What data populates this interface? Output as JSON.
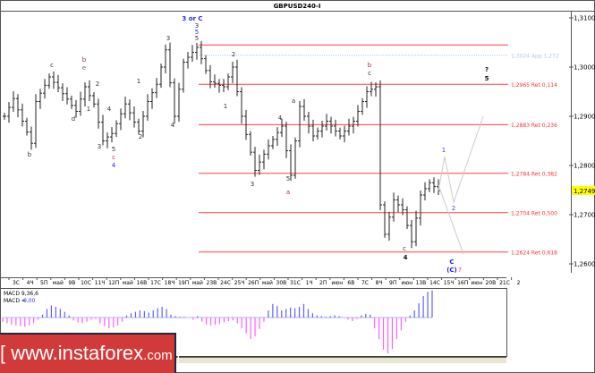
{
  "chart_data": {
    "type": "ohlc",
    "title": "GBPUSD240-I",
    "y_ticks": [
      "1,3100",
      "1,3000",
      "1,2900",
      "1,2800",
      "1,2700",
      "1,2600"
    ],
    "y_tick_values": [
      1.31,
      1.3,
      1.29,
      1.28,
      1.27,
      1.26
    ],
    "ylim": [
      1.2584,
      1.3136
    ],
    "x_ticks": [
      "3С",
      "4Ч",
      "5П",
      "май",
      "9В",
      "10С",
      "11Ч",
      "12П",
      "май",
      "16В",
      "17С",
      "18Ч",
      "19П",
      "май",
      "23В",
      "24С",
      "25Ч",
      "26П",
      "май",
      "30В",
      "31С",
      "1Ч",
      "2П",
      "июн",
      "6В",
      "7С",
      "8Ч",
      "9П",
      "июн",
      "13В",
      "14С",
      "15Ч",
      "16П",
      "июн",
      "20В",
      "21С",
      "2"
    ],
    "closes": [
      1.29,
      1.2918,
      1.2936,
      1.2913,
      1.289,
      1.2868,
      1.2845,
      1.293,
      1.2947,
      1.2963,
      1.298,
      1.2969,
      1.2958,
      1.2946,
      1.2935,
      1.2922,
      1.291,
      1.2935,
      1.296,
      1.2942,
      1.2925,
      1.2888,
      1.285,
      1.2858,
      1.2865,
      1.2885,
      1.2905,
      1.2925,
      1.2907,
      1.2888,
      1.287,
      1.29,
      1.293,
      1.2948,
      1.2965,
      1.3,
      1.3035,
      1.2968,
      1.29,
      1.2955,
      1.301,
      1.302,
      1.303,
      1.304,
      1.3017,
      1.2993,
      1.297,
      1.2967,
      1.2963,
      1.296,
      1.298,
      1.3,
      1.295,
      1.29,
      1.2863,
      1.2827,
      1.279,
      1.2807,
      1.2823,
      1.284,
      1.2853,
      1.2867,
      1.288,
      1.283,
      1.278,
      1.285,
      1.292,
      1.29,
      1.288,
      1.286,
      1.287,
      1.288,
      1.289,
      1.288,
      1.287,
      1.286,
      1.287,
      1.288,
      1.289,
      1.291,
      1.293,
      1.295,
      1.2955,
      1.296,
      1.272,
      1.266,
      1.2695,
      1.273,
      1.272,
      1.271,
      1.2678,
      1.2645,
      1.2693,
      1.274,
      1.2753,
      1.2765,
      1.2757,
      1.2749
    ],
    "current_price": "1,2749",
    "current_price_value": 1.2749,
    "levels": [
      {
        "value": 1.3045,
        "label": "",
        "color": "#ff4040"
      },
      {
        "value": 1.3024,
        "label": "1,3024 App 1,272",
        "color": "#a8cce8"
      },
      {
        "value": 1.2965,
        "label": "1,2965 Ret 0,114",
        "color": "#ff4040"
      },
      {
        "value": 1.2883,
        "label": "1,2883 Ret 0,236",
        "color": "#ff4040"
      },
      {
        "value": 1.2784,
        "label": "1,2784 Ret 0,382",
        "color": "#ff4040"
      },
      {
        "value": 1.2704,
        "label": "1,2704 Ret 0,500",
        "color": "#ff4040"
      },
      {
        "value": 1.2624,
        "label": "1,2624 Ret 0,618",
        "color": "#ff4040"
      }
    ],
    "projection_main": [
      1.2749,
      1.2818,
      1.2725,
      1.29
    ],
    "projection_alt": [
      1.276,
      1.262
    ],
    "wave_labels": [
      {
        "text": "3 or C",
        "color": "#2828ff"
      },
      {
        "text": "3",
        "color": "#333"
      },
      {
        "text": "5",
        "color": "#2828ff"
      },
      {
        "text": "5",
        "color": "#333"
      },
      {
        "text": "b",
        "color": "#333"
      },
      {
        "text": "c",
        "color": "#333"
      },
      {
        "text": "b",
        "color": "#a03030"
      },
      {
        "text": "e",
        "color": "#666"
      },
      {
        "text": "d",
        "color": "#333"
      },
      {
        "text": "2",
        "color": "#333"
      },
      {
        "text": "1",
        "color": "#333"
      },
      {
        "text": "4",
        "color": "#333"
      },
      {
        "text": "3",
        "color": "#333"
      },
      {
        "text": "5",
        "color": "#333"
      },
      {
        "text": "c",
        "color": "#c03030"
      },
      {
        "text": "4",
        "color": "#2828ff"
      },
      {
        "text": "1",
        "color": "#333"
      },
      {
        "text": "2",
        "color": "#333"
      },
      {
        "text": "3",
        "color": "#333"
      },
      {
        "text": "4",
        "color": "#333"
      },
      {
        "text": "2",
        "color": "#333"
      },
      {
        "text": "1",
        "color": "#333"
      },
      {
        "text": "3",
        "color": "#333"
      },
      {
        "text": "4",
        "color": "#333"
      },
      {
        "text": "5",
        "color": "#333"
      },
      {
        "text": "a",
        "color": "#c03030"
      },
      {
        "text": "a",
        "color": "#333"
      },
      {
        "text": "b",
        "color": "#a03030"
      },
      {
        "text": "c",
        "color": "#333"
      },
      {
        "text": "c",
        "color": "#333"
      },
      {
        "text": "4",
        "color": "#111"
      },
      {
        "text": "?",
        "color": "#111"
      },
      {
        "text": "5",
        "color": "#111"
      },
      {
        "text": "1",
        "color": "#4040ff"
      },
      {
        "text": "2",
        "color": "#4040ff"
      },
      {
        "text": "C",
        "color": "#2020e0"
      },
      {
        "text": "(C)",
        "color": "#2020e0"
      },
      {
        "text": "?",
        "color": "#ff2020"
      }
    ],
    "macd": {
      "label": "MACD 9,36,6",
      "value_label": "MACD =",
      "value": "0,00",
      "pos_color": "#6060ff",
      "neg_color": "#ff60ff",
      "histogram": [
        -6,
        -8,
        -10,
        -11,
        -12,
        -13,
        -11,
        -8,
        -3,
        4,
        12,
        17,
        15,
        12,
        8,
        3,
        -4,
        -7,
        -8,
        -6,
        -3,
        -2,
        -8,
        -12,
        -15,
        -14,
        -11,
        -6,
        3,
        6,
        8,
        10,
        9,
        7,
        10,
        13,
        15,
        12,
        4,
        2,
        1,
        1,
        0,
        -3,
        2,
        -6,
        -10,
        -11,
        -10,
        -9,
        -7,
        -5,
        -4,
        -8,
        -15,
        -22,
        -30,
        -26,
        -16,
        -6,
        10,
        19,
        16,
        10,
        12,
        14,
        13,
        15,
        19,
        12,
        6,
        3,
        2,
        1,
        2,
        3,
        2,
        0,
        -3,
        -5,
        -2,
        3,
        5,
        4,
        -15,
        -30,
        -45,
        -50,
        -44,
        -30,
        -18,
        -6,
        3,
        10,
        20,
        30,
        36,
        38
      ]
    }
  },
  "logo": {
    "text": "[ www.instaforex",
    "suffix": ".com ]"
  }
}
